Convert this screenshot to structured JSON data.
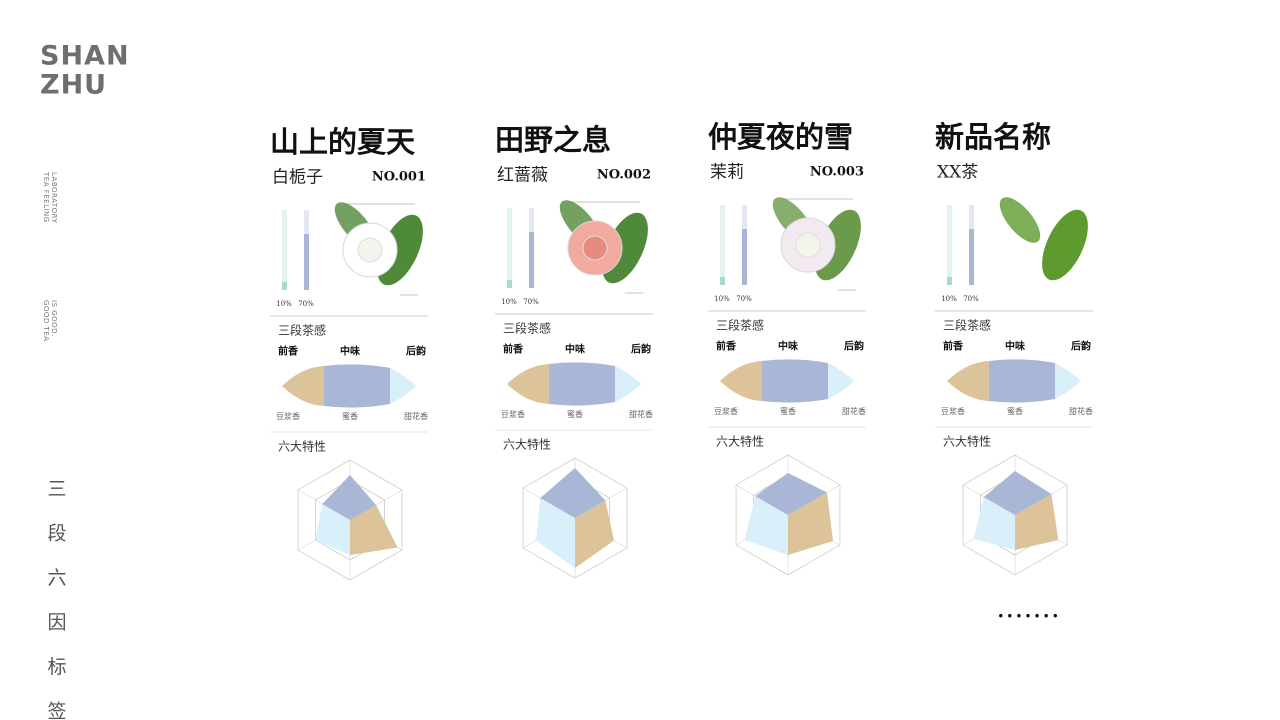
{
  "brand": [
    "SHAN",
    "ZHU"
  ],
  "side_notes": [
    [
      "TEA FEELING",
      "LABORATORY"
    ],
    [
      "GOOD TEA",
      "IS GOOD."
    ]
  ],
  "vertical_title": [
    "三",
    "段",
    "六",
    "因",
    "标",
    "签"
  ],
  "cards": [
    {
      "title": "山上的夏天",
      "subtitle": "白栀子",
      "number": "NO.001",
      "bars": {
        "values": [
          10,
          70
        ],
        "value_labels": [
          "10%",
          "70%"
        ]
      },
      "section1": "三段茶感",
      "stages": [
        "前香",
        "中味",
        "后韵"
      ],
      "notes": [
        "豆浆香",
        "蜜香",
        "甜花香"
      ],
      "section2": "六大特性"
    },
    {
      "title": "田野之息",
      "subtitle": "红蔷薇",
      "number": "NO.002",
      "bars": {
        "values": [
          10,
          70
        ],
        "value_labels": [
          "10%",
          "70%"
        ]
      },
      "section1": "三段茶感",
      "stages": [
        "前香",
        "中味",
        "后韵"
      ],
      "notes": [
        "豆浆香",
        "蜜香",
        "甜花香"
      ],
      "section2": "六大特性"
    },
    {
      "title": "仲夏夜的雪",
      "subtitle": "茉莉",
      "number": "NO.003",
      "bars": {
        "values": [
          10,
          70
        ],
        "value_labels": [
          "10%",
          "70%"
        ]
      },
      "section1": "三段茶感",
      "stages": [
        "前香",
        "中味",
        "后韵"
      ],
      "notes": [
        "豆浆香",
        "蜜香",
        "甜花香"
      ],
      "section2": "六大特性"
    },
    {
      "title": "新品名称",
      "subtitle": "XX茶",
      "bars": {
        "values": [
          10,
          70
        ],
        "value_labels": [
          "10%",
          "70%"
        ]
      },
      "section1": "三段茶感",
      "stages": [
        "前香",
        "中味",
        "后韵"
      ],
      "notes": [
        "豆浆香",
        "蜜香",
        "甜花香"
      ],
      "section2": "六大特性"
    }
  ],
  "pagination": "•••••••"
}
